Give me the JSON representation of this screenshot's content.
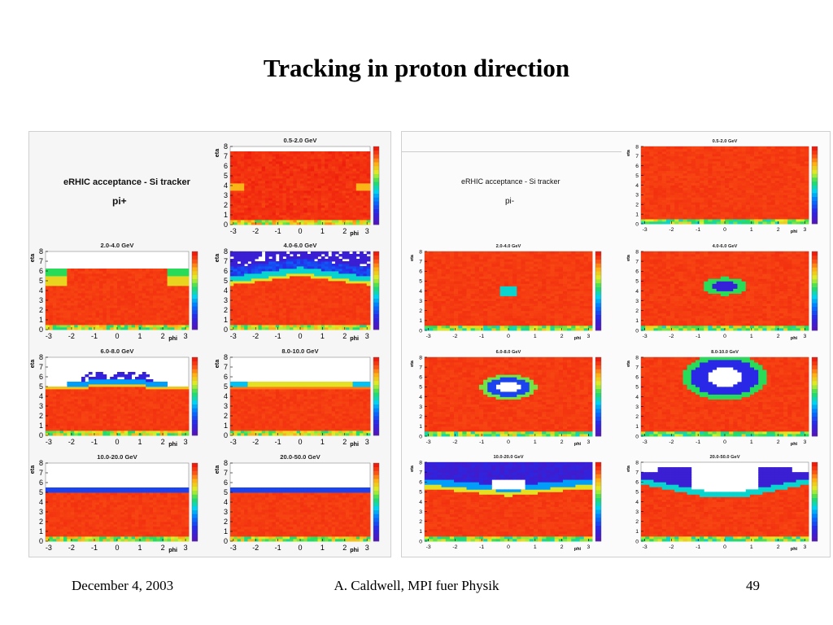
{
  "slide": {
    "title": "Tracking in proton direction",
    "footer_date": "December 4, 2003",
    "footer_author": "A. Caldwell, MPI fuer Physik",
    "page_number": "49"
  },
  "left_group": {
    "legend_title": "eRHIC acceptance - Si tracker",
    "particle": "pi+"
  },
  "right_group": {
    "legend_title": "eRHIC acceptance - Si tracker",
    "particle": "pi-"
  },
  "colors": {
    "acceptance_high": "#ee1c0c",
    "acceptance_low": "#3a1ad8",
    "white_zero": "#ffffff"
  },
  "chart_data": [
    {
      "type": "heatmap",
      "panel": "left-1",
      "title": "0.5-2.0 GeV",
      "xlabel": "phi",
      "ylabel": "eta",
      "xlim": [
        -3.14,
        3.14
      ],
      "ylim": [
        0,
        8
      ],
      "x_ticks": [
        "-3",
        "-2",
        "-1",
        "0",
        "1",
        "2",
        "3"
      ],
      "y_ticks": [
        "0",
        "1",
        "2",
        "3",
        "4",
        "5",
        "6",
        "7",
        "8"
      ],
      "acceptance_edge_eta": "~7.5 at all phi",
      "scale": [
        0,
        1
      ]
    },
    {
      "type": "heatmap",
      "panel": "left-2",
      "title": "2.0-4.0 GeV",
      "xlabel": "phi",
      "ylabel": "eta",
      "xlim": [
        -3.14,
        3.14
      ],
      "ylim": [
        0,
        8
      ],
      "x_ticks": [
        "-3",
        "-2",
        "-1",
        "0",
        "1",
        "2",
        "3"
      ],
      "y_ticks": [
        "0",
        "1",
        "2",
        "3",
        "4",
        "5",
        "6",
        "7",
        "8"
      ],
      "acceptance_edge_eta": "~6, dip near phi=±3",
      "scale": [
        0,
        1
      ]
    },
    {
      "type": "heatmap",
      "panel": "left-3",
      "title": "4.0-6.0 GeV",
      "xlabel": "phi",
      "ylabel": "eta",
      "xlim": [
        -3.14,
        3.14
      ],
      "ylim": [
        0,
        8
      ],
      "x_ticks": [
        "-3",
        "-2",
        "-1",
        "0",
        "1",
        "2",
        "3"
      ],
      "y_ticks": [
        "0",
        "1",
        "2",
        "3",
        "4",
        "5",
        "6",
        "7",
        "8"
      ],
      "acceptance_edge_eta": "~4.5 at edges, ~5.5 at phi=0",
      "scale": [
        0,
        1
      ]
    },
    {
      "type": "heatmap",
      "panel": "left-4",
      "title": "6.0-8.0 GeV",
      "xlabel": "phi",
      "ylabel": "eta",
      "xlim": [
        -3.14,
        3.14
      ],
      "ylim": [
        0,
        8
      ],
      "x_ticks": [
        "-3",
        "-2",
        "-1",
        "0",
        "1",
        "2",
        "3"
      ],
      "y_ticks": [
        "0",
        "1",
        "2",
        "3",
        "4",
        "5",
        "6",
        "7",
        "8"
      ],
      "acceptance_edge_eta": "~4.5-5",
      "scale": [
        0,
        1
      ]
    },
    {
      "type": "heatmap",
      "panel": "left-5",
      "title": "8.0-10.0 GeV",
      "xlabel": "phi",
      "ylabel": "eta",
      "xlim": [
        -3.14,
        3.14
      ],
      "ylim": [
        0,
        8
      ],
      "x_ticks": [
        "-3",
        "-2",
        "-1",
        "0",
        "1",
        "2",
        "3"
      ],
      "y_ticks": [
        "0",
        "1",
        "2",
        "3",
        "4",
        "5",
        "6",
        "7",
        "8"
      ],
      "acceptance_edge_eta": "~4.5-5",
      "scale": [
        0,
        1
      ]
    },
    {
      "type": "heatmap",
      "panel": "left-6",
      "title": "10.0-20.0 GeV",
      "xlabel": "phi",
      "ylabel": "eta",
      "xlim": [
        -3.14,
        3.14
      ],
      "ylim": [
        0,
        8
      ],
      "x_ticks": [
        "-3",
        "-2",
        "-1",
        "0",
        "1",
        "2",
        "3"
      ],
      "y_ticks": [
        "0",
        "1",
        "2",
        "3",
        "4",
        "5",
        "6",
        "7",
        "8"
      ],
      "acceptance_edge_eta": "~5",
      "scale": [
        0,
        1
      ]
    },
    {
      "type": "heatmap",
      "panel": "left-7",
      "title": "20.0-50.0 GeV",
      "xlabel": "phi",
      "ylabel": "eta",
      "xlim": [
        -3.14,
        3.14
      ],
      "ylim": [
        0,
        8
      ],
      "x_ticks": [
        "-3",
        "-2",
        "-1",
        "0",
        "1",
        "2",
        "3"
      ],
      "y_ticks": [
        "0",
        "1",
        "2",
        "3",
        "4",
        "5",
        "6",
        "7",
        "8"
      ],
      "acceptance_edge_eta": "~5",
      "scale": [
        0,
        1
      ]
    },
    {
      "type": "heatmap",
      "panel": "right-1",
      "title": "0.5-2.0 GeV",
      "xlabel": "phi",
      "ylabel": "eta",
      "xlim": [
        -3.14,
        3.14
      ],
      "ylim": [
        0,
        8
      ],
      "x_ticks": [
        "-3",
        "-2",
        "-1",
        "0",
        "1",
        "2",
        "3"
      ],
      "y_ticks": [
        "0",
        "1",
        "2",
        "3",
        "4",
        "5",
        "6",
        "7",
        "8"
      ],
      "acceptance_edge_eta": "~8 at all phi",
      "scale": [
        0,
        1
      ]
    },
    {
      "type": "heatmap",
      "panel": "right-2",
      "title": "2.0-4.0 GeV",
      "xlabel": "phi",
      "ylabel": "eta",
      "xlim": [
        -3.14,
        3.14
      ],
      "ylim": [
        0,
        8
      ],
      "x_ticks": [
        "-3",
        "-2",
        "-1",
        "0",
        "1",
        "2",
        "3"
      ],
      "y_ticks": [
        "0",
        "1",
        "2",
        "3",
        "4",
        "5",
        "6",
        "7",
        "8"
      ],
      "hole": "small hole at phi=0, eta~4",
      "scale": [
        0,
        1
      ]
    },
    {
      "type": "heatmap",
      "panel": "right-3",
      "title": "4.0-6.0 GeV",
      "xlabel": "phi",
      "ylabel": "eta",
      "xlim": [
        -3.14,
        3.14
      ],
      "ylim": [
        0,
        8
      ],
      "x_ticks": [
        "-3",
        "-2",
        "-1",
        "0",
        "1",
        "2",
        "3"
      ],
      "y_ticks": [
        "0",
        "1",
        "2",
        "3",
        "4",
        "5",
        "6",
        "7",
        "8"
      ],
      "hole": "hole at phi=0, eta~4.5",
      "scale": [
        0,
        1
      ]
    },
    {
      "type": "heatmap",
      "panel": "right-4",
      "title": "6.0-8.0 GeV",
      "xlabel": "phi",
      "ylabel": "eta",
      "xlim": [
        -3.14,
        3.14
      ],
      "ylim": [
        0,
        8
      ],
      "x_ticks": [
        "-3",
        "-2",
        "-1",
        "0",
        "1",
        "2",
        "3"
      ],
      "y_ticks": [
        "0",
        "1",
        "2",
        "3",
        "4",
        "5",
        "6",
        "7",
        "8"
      ],
      "hole": "ring around phi=0, eta~5",
      "scale": [
        0,
        1
      ]
    },
    {
      "type": "heatmap",
      "panel": "right-5",
      "title": "8.0-10.0 GeV",
      "xlabel": "phi",
      "ylabel": "eta",
      "xlim": [
        -3.14,
        3.14
      ],
      "ylim": [
        0,
        8
      ],
      "x_ticks": [
        "-3",
        "-2",
        "-1",
        "0",
        "1",
        "2",
        "3"
      ],
      "y_ticks": [
        "0",
        "1",
        "2",
        "3",
        "4",
        "5",
        "6",
        "7",
        "8"
      ],
      "hole": "large ring around phi=0, eta~5.5",
      "scale": [
        0,
        1
      ]
    },
    {
      "type": "heatmap",
      "panel": "right-6",
      "title": "10.0-20.0 GeV",
      "xlabel": "phi",
      "ylabel": "eta",
      "xlim": [
        -3.14,
        3.14
      ],
      "ylim": [
        0,
        8
      ],
      "x_ticks": [
        "-3",
        "-2",
        "-1",
        "0",
        "1",
        "2",
        "3"
      ],
      "y_ticks": [
        "0",
        "1",
        "2",
        "3",
        "4",
        "5",
        "6",
        "7",
        "8"
      ],
      "acceptance_edge_eta": "~5 at edges, ~4.5 at phi=0",
      "scale": [
        0,
        1
      ]
    },
    {
      "type": "heatmap",
      "panel": "right-7",
      "title": "20.0-50.0 GeV",
      "xlabel": "phi",
      "ylabel": "eta",
      "xlim": [
        -3.14,
        3.14
      ],
      "ylim": [
        0,
        8
      ],
      "x_ticks": [
        "-3",
        "-2",
        "-1",
        "0",
        "1",
        "2",
        "3"
      ],
      "y_ticks": [
        "0",
        "1",
        "2",
        "3",
        "4",
        "5",
        "6",
        "7",
        "8"
      ],
      "acceptance_edge_eta": "~6 at edges, ~4.5 at phi=0",
      "scale": [
        0,
        1
      ]
    }
  ]
}
